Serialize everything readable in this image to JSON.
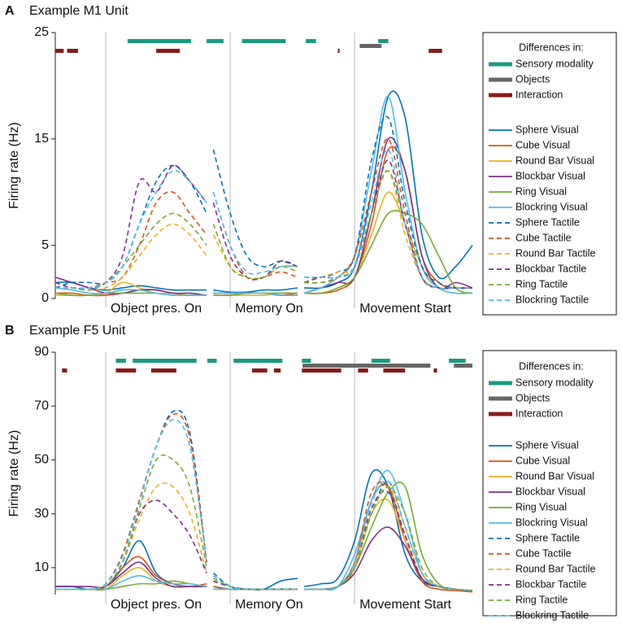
{
  "chart_data": [
    {
      "type": "line",
      "panel": "A",
      "title": "Example M1 Unit",
      "ylabel": "Firing rate (Hz)",
      "categories": [
        null,
        null,
        null,
        "Object pres. On",
        null,
        null,
        null,
        null,
        null,
        null,
        null,
        null,
        "Memory On",
        null,
        null,
        null,
        null,
        null,
        null,
        null,
        null,
        "Movement Start",
        null,
        null,
        null,
        null,
        null,
        null,
        null
      ],
      "ylim": [
        0,
        25
      ],
      "yticks": [
        0,
        5,
        15,
        25
      ],
      "legend_title": "Differences in:",
      "differences": [
        {
          "name": "Sensory modality",
          "color": "#1a9a80",
          "spans": [
            [
              4.3,
              8.07
            ],
            [
              9.0,
              11.6
            ],
            [
              12.7,
              15.3
            ],
            [
              18.1,
              18.7
            ],
            [
              22.4,
              23.0
            ]
          ]
        },
        {
          "name": "Objects",
          "color": "#666666",
          "spans": [
            [
              21.3,
              22.6
            ]
          ]
        },
        {
          "name": "Interaction",
          "color": "#8b1a1a",
          "spans": [
            [
              0,
              0.5
            ],
            [
              0.7,
              1.35
            ],
            [
              6.0,
              7.4
            ],
            [
              20.0,
              20.1
            ],
            [
              25.4,
              26.2
            ]
          ]
        }
      ],
      "series": [
        {
          "name": "Sphere Visual",
          "color": "#0072bd",
          "style": "solid",
          "values": [
            1.5,
            1.5,
            1,
            0.8,
            1,
            1.2,
            1,
            0.8,
            0.8,
            0.8,
            null,
            0.8,
            0.6,
            0.6,
            0.8,
            0.8,
            1,
            null,
            1,
            1,
            1.5,
            3,
            10,
            19,
            17,
            6,
            2,
            3,
            5
          ]
        },
        {
          "name": "Cube Visual",
          "color": "#d95319",
          "style": "solid",
          "values": [
            0.5,
            0.5,
            0.3,
            0.3,
            0.5,
            0.8,
            0.8,
            0.5,
            0.3,
            0.3,
            null,
            0.3,
            0.3,
            0.5,
            0.5,
            0.3,
            0.5,
            null,
            0.5,
            0.5,
            0.8,
            2,
            7,
            14,
            12,
            4,
            1.5,
            1,
            1
          ]
        },
        {
          "name": "Round Bar Visual",
          "color": "#edb120",
          "style": "solid",
          "values": [
            0.3,
            0.3,
            0.3,
            0.5,
            1.5,
            1,
            0.5,
            0.5,
            0.3,
            0.3,
            null,
            0.3,
            0.3,
            0.3,
            0.3,
            0.5,
            0.5,
            null,
            0.5,
            0.5,
            1,
            2,
            6,
            10,
            7,
            3,
            1,
            0.5,
            0.5
          ]
        },
        {
          "name": "Blockbar Visual",
          "color": "#7e2f8e",
          "style": "solid",
          "values": [
            2,
            1.5,
            1,
            0.5,
            0.5,
            0.8,
            0.8,
            0.5,
            0.5,
            0.3,
            null,
            0.5,
            0.5,
            0.5,
            0.5,
            0.3,
            0.3,
            null,
            0.5,
            1,
            1.5,
            2,
            8,
            15,
            12,
            4,
            1,
            1.5,
            1
          ]
        },
        {
          "name": "Ring Visual",
          "color": "#77ac30",
          "style": "solid",
          "values": [
            0.5,
            0.3,
            0.3,
            0.5,
            0.5,
            0.5,
            0.5,
            0.3,
            0.3,
            0.3,
            null,
            0.3,
            0.3,
            0.5,
            0.5,
            0.5,
            0.5,
            null,
            0.5,
            0.5,
            1,
            2,
            5,
            8,
            8,
            7,
            4,
            1,
            0.5
          ]
        },
        {
          "name": "Blockring Visual",
          "color": "#4dbeee",
          "style": "solid",
          "values": [
            1,
            0.8,
            0.5,
            0.5,
            0.8,
            0.8,
            0.5,
            0.3,
            0.3,
            0.3,
            null,
            0.5,
            0.5,
            0.5,
            0.5,
            0.3,
            0.3,
            null,
            0.5,
            1,
            2,
            4,
            12,
            19,
            10,
            3,
            1,
            0.5,
            0.5
          ]
        },
        {
          "name": "Sphere Tactile",
          "color": "#0072bd",
          "style": "dashed",
          "values": [
            1,
            1.5,
            1.5,
            1.5,
            3,
            7,
            11,
            12.5,
            11,
            8,
            null,
            14,
            8,
            4,
            3,
            3.5,
            3,
            null,
            2,
            2,
            2.5,
            4,
            13,
            17,
            9,
            3,
            1.5,
            1,
            1
          ]
        },
        {
          "name": "Cube Tactile",
          "color": "#d95319",
          "style": "dashed",
          "values": [
            1,
            1,
            1,
            1.5,
            2,
            5,
            9,
            10,
            8,
            6,
            null,
            10,
            5,
            2,
            2,
            2.5,
            2,
            null,
            1.5,
            1.5,
            2,
            4,
            10,
            15,
            8,
            2,
            1,
            1,
            1
          ]
        },
        {
          "name": "Round Bar Tactile",
          "color": "#edb120",
          "style": "dashed",
          "values": [
            1,
            1,
            0.8,
            1,
            2,
            4,
            6,
            7,
            6,
            4,
            null,
            6,
            3,
            2,
            2,
            3,
            3,
            null,
            1.5,
            2,
            2.5,
            3,
            8,
            12,
            6,
            2,
            1,
            1,
            1
          ]
        },
        {
          "name": "Blockbar Tactile",
          "color": "#7e2f8e",
          "style": "dashed",
          "values": [
            1.5,
            1,
            1,
            1.5,
            4,
            11,
            10,
            12.5,
            11,
            9,
            null,
            9,
            4,
            2,
            2,
            3.5,
            3,
            null,
            1.5,
            2,
            2,
            3,
            8,
            13,
            7,
            2,
            1,
            1,
            1
          ]
        },
        {
          "name": "Ring Tactile",
          "color": "#77ac30",
          "style": "dashed",
          "values": [
            1,
            1,
            0.8,
            1.5,
            3,
            5,
            7,
            8,
            7,
            5,
            null,
            7,
            3,
            2,
            2,
            3,
            2.5,
            null,
            1.5,
            1.5,
            2,
            3,
            8,
            12,
            7,
            2,
            1,
            1,
            1
          ]
        },
        {
          "name": "Blockring Tactile",
          "color": "#4dbeee",
          "style": "dashed",
          "values": [
            1,
            1,
            1,
            1.5,
            3,
            7,
            10,
            12,
            11,
            9,
            null,
            10,
            5,
            2.5,
            2.5,
            3,
            3,
            null,
            2,
            2,
            2,
            3,
            9,
            14,
            7,
            2,
            1,
            1,
            1
          ]
        }
      ]
    },
    {
      "type": "line",
      "panel": "B",
      "title": "Example F5 Unit",
      "ylabel": "Firing rate (Hz)",
      "categories": [
        null,
        null,
        null,
        "Object pres. On",
        null,
        null,
        null,
        null,
        null,
        null,
        null,
        null,
        "Memory On",
        null,
        null,
        null,
        null,
        null,
        null,
        null,
        null,
        "Movement Start",
        null,
        null,
        null,
        null,
        null,
        null,
        null
      ],
      "ylim": [
        0,
        90
      ],
      "yticks": [
        10,
        30,
        50,
        70,
        90
      ],
      "legend_title": "Differences in:",
      "differences": [
        {
          "name": "Sensory modality",
          "color": "#1a9a80",
          "spans": [
            [
              3.6,
              4.2
            ],
            [
              4.6,
              8.4
            ],
            [
              9.2,
              11.2
            ],
            [
              12.2,
              15.1
            ],
            [
              17.3,
              18.4
            ],
            [
              22.0,
              23.1
            ],
            [
              26.6,
              27.6
            ]
          ]
        },
        {
          "name": "Objects",
          "color": "#666666",
          "spans": [
            [
              17.5,
              25.5
            ],
            [
              26.9,
              28.0
            ]
          ]
        },
        {
          "name": "Interaction",
          "color": "#8b1a1a",
          "spans": [
            [
              0.4,
              0.7
            ],
            [
              3.6,
              4.8
            ],
            [
              5.7,
              7.2
            ],
            [
              13.3,
              14.2
            ],
            [
              14.6,
              15.0
            ],
            [
              17.3,
              20.2
            ],
            [
              21.2,
              21.8
            ],
            [
              22.7,
              24.0
            ],
            [
              25.7,
              25.9
            ]
          ]
        }
      ],
      "series": [
        {
          "name": "Sphere Visual",
          "color": "#0072bd",
          "style": "solid",
          "values": [
            3,
            3,
            2,
            3,
            10,
            20,
            8,
            4,
            3,
            3,
            null,
            3,
            2,
            2,
            2,
            5,
            6,
            null,
            3,
            4,
            6,
            20,
            45,
            40,
            15,
            5,
            3,
            2,
            1.5
          ]
        },
        {
          "name": "Cube Visual",
          "color": "#d95319",
          "style": "solid",
          "values": [
            2,
            2,
            2,
            3,
            10,
            14,
            7,
            4,
            3,
            4,
            null,
            3,
            2,
            2,
            2,
            2,
            2,
            null,
            2,
            2,
            3,
            12,
            35,
            40,
            20,
            5,
            2,
            1.5,
            1
          ]
        },
        {
          "name": "Round Bar Visual",
          "color": "#edb120",
          "style": "solid",
          "values": [
            2,
            2,
            2,
            2,
            7,
            10,
            5,
            3,
            3,
            3,
            null,
            2,
            2,
            2,
            2,
            2,
            2,
            null,
            2,
            2,
            3,
            10,
            30,
            35,
            20,
            6,
            3,
            2,
            1.5
          ]
        },
        {
          "name": "Blockbar Visual",
          "color": "#7e2f8e",
          "style": "solid",
          "values": [
            3,
            3,
            3,
            3,
            8,
            12,
            6,
            3,
            3,
            3,
            null,
            2,
            2,
            2,
            2,
            2,
            2,
            null,
            2,
            2,
            3,
            8,
            20,
            25,
            18,
            6,
            3,
            2,
            1.5
          ]
        },
        {
          "name": "Ring Visual",
          "color": "#77ac30",
          "style": "solid",
          "values": [
            2,
            2,
            2,
            2,
            3,
            4,
            4,
            5,
            4,
            3,
            null,
            2,
            2,
            2,
            2,
            2,
            2,
            null,
            2,
            2,
            3,
            10,
            25,
            38,
            40,
            15,
            4,
            2,
            1.5
          ]
        },
        {
          "name": "Blockring Visual",
          "color": "#4dbeee",
          "style": "solid",
          "values": [
            2,
            2,
            2,
            2,
            5,
            7,
            5,
            4,
            4,
            3,
            null,
            2,
            2,
            2,
            2,
            2,
            2,
            null,
            2,
            2,
            3,
            15,
            35,
            46,
            30,
            8,
            3,
            2,
            1.5
          ]
        },
        {
          "name": "Sphere Tactile",
          "color": "#0072bd",
          "style": "dashed",
          "values": [
            2,
            2,
            2,
            4,
            15,
            35,
            55,
            68,
            60,
            12,
            null,
            8,
            3,
            2,
            2,
            2,
            2,
            null,
            2,
            2,
            3,
            10,
            30,
            42,
            25,
            8,
            3,
            2,
            1.5
          ]
        },
        {
          "name": "Cube Tactile",
          "color": "#d95319",
          "style": "dashed",
          "values": [
            2,
            2,
            2,
            4,
            15,
            35,
            55,
            67,
            58,
            12,
            null,
            7,
            3,
            2,
            2,
            2,
            2,
            null,
            2,
            2,
            3,
            12,
            38,
            40,
            22,
            6,
            3,
            2,
            1.5
          ]
        },
        {
          "name": "Round Bar Tactile",
          "color": "#edb120",
          "style": "dashed",
          "values": [
            2,
            2,
            2,
            3,
            12,
            28,
            40,
            40,
            30,
            8,
            null,
            5,
            3,
            2,
            2,
            2,
            2,
            null,
            2,
            2,
            3,
            10,
            30,
            40,
            25,
            8,
            3,
            2,
            1.5
          ]
        },
        {
          "name": "Blockbar Tactile",
          "color": "#7e2f8e",
          "style": "dashed",
          "values": [
            2,
            2,
            2,
            3,
            12,
            30,
            35,
            30,
            22,
            8,
            null,
            5,
            3,
            2,
            2,
            2,
            2,
            null,
            2,
            2,
            3,
            10,
            32,
            38,
            22,
            6,
            3,
            2,
            1.5
          ]
        },
        {
          "name": "Ring Tactile",
          "color": "#77ac30",
          "style": "dashed",
          "values": [
            2,
            2,
            2,
            3,
            12,
            32,
            50,
            50,
            40,
            10,
            null,
            6,
            3,
            2,
            2,
            2,
            2,
            null,
            2,
            2,
            3,
            10,
            30,
            40,
            30,
            10,
            3,
            2,
            1.5
          ]
        },
        {
          "name": "Blockring Tactile",
          "color": "#4dbeee",
          "style": "dashed",
          "values": [
            2,
            2,
            2,
            4,
            14,
            34,
            55,
            65,
            55,
            12,
            null,
            7,
            3,
            2,
            2,
            2,
            2,
            null,
            2,
            2,
            3,
            12,
            34,
            42,
            25,
            8,
            3,
            2,
            1.5
          ]
        }
      ]
    }
  ]
}
